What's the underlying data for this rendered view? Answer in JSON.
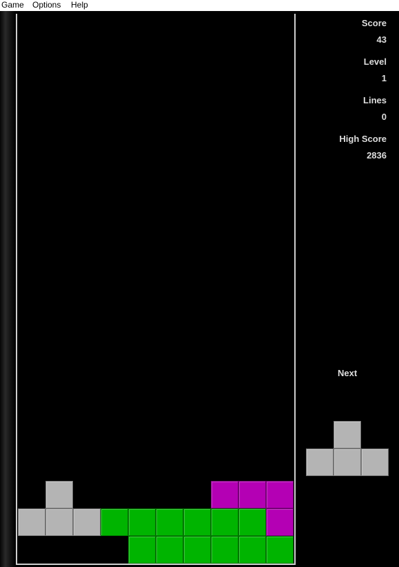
{
  "menu": {
    "game": "Game",
    "options": "Options",
    "help": "Help"
  },
  "stats": [
    {
      "label": "Score",
      "value": "43"
    },
    {
      "label": "Level",
      "value": "1"
    },
    {
      "label": "Lines",
      "value": "0"
    },
    {
      "label": "High Score",
      "value": "2836"
    }
  ],
  "next_label": "Next",
  "colors": {
    "gray": "#b4b4b4",
    "green": "#00b400",
    "magenta": "#b400b4",
    "board_border": "#cfcfcf"
  },
  "board": {
    "columns": 10,
    "rows": 20,
    "cells": [
      {
        "row": 17,
        "col": 1,
        "color": "gray"
      },
      {
        "row": 17,
        "col": 7,
        "color": "magenta"
      },
      {
        "row": 17,
        "col": 8,
        "color": "magenta"
      },
      {
        "row": 17,
        "col": 9,
        "color": "magenta"
      },
      {
        "row": 18,
        "col": 0,
        "color": "gray"
      },
      {
        "row": 18,
        "col": 1,
        "color": "gray"
      },
      {
        "row": 18,
        "col": 2,
        "color": "gray"
      },
      {
        "row": 18,
        "col": 3,
        "color": "green"
      },
      {
        "row": 18,
        "col": 4,
        "color": "green"
      },
      {
        "row": 18,
        "col": 5,
        "color": "green"
      },
      {
        "row": 18,
        "col": 6,
        "color": "green"
      },
      {
        "row": 18,
        "col": 7,
        "color": "green"
      },
      {
        "row": 18,
        "col": 8,
        "color": "green"
      },
      {
        "row": 18,
        "col": 9,
        "color": "magenta"
      },
      {
        "row": 19,
        "col": 4,
        "color": "green"
      },
      {
        "row": 19,
        "col": 5,
        "color": "green"
      },
      {
        "row": 19,
        "col": 6,
        "color": "green"
      },
      {
        "row": 19,
        "col": 7,
        "color": "green"
      },
      {
        "row": 19,
        "col": 8,
        "color": "green"
      },
      {
        "row": 19,
        "col": 9,
        "color": "green"
      }
    ]
  },
  "next_piece": {
    "color": "gray",
    "cells": [
      {
        "row": 0,
        "col": 1
      },
      {
        "row": 1,
        "col": 0
      },
      {
        "row": 1,
        "col": 1
      },
      {
        "row": 1,
        "col": 2
      }
    ]
  }
}
